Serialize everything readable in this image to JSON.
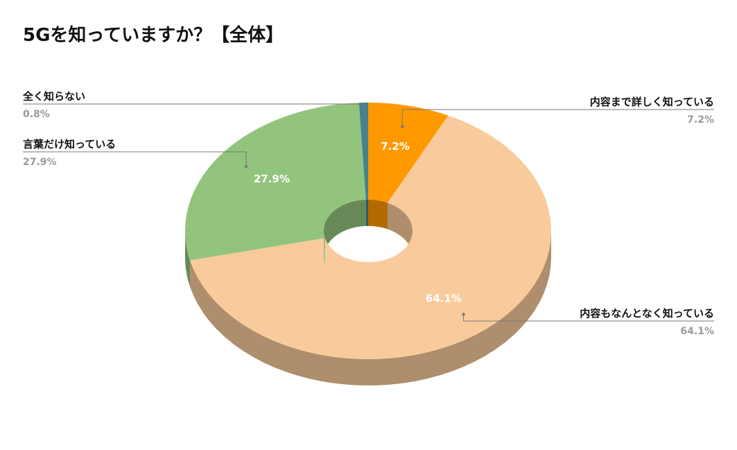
{
  "chart_data": {
    "type": "pie",
    "variant": "3d-donut",
    "title": "5Gを知っていますか？【全体】",
    "slices": [
      {
        "label": "内容まで詳しく知っている",
        "value": 7.2,
        "value_label": "7.2%",
        "color": "#FF9900"
      },
      {
        "label": "内容もなんとなく知っている",
        "value": 64.1,
        "value_label": "64.1%",
        "color": "#F9CB9C"
      },
      {
        "label": "言葉だけ知っている",
        "value": 27.9,
        "value_label": "27.9%",
        "color": "#93C47D"
      },
      {
        "label": "全く知らない",
        "value": 0.8,
        "value_label": "0.8%",
        "color": "#45818E"
      }
    ],
    "legend": "callout-labels"
  }
}
